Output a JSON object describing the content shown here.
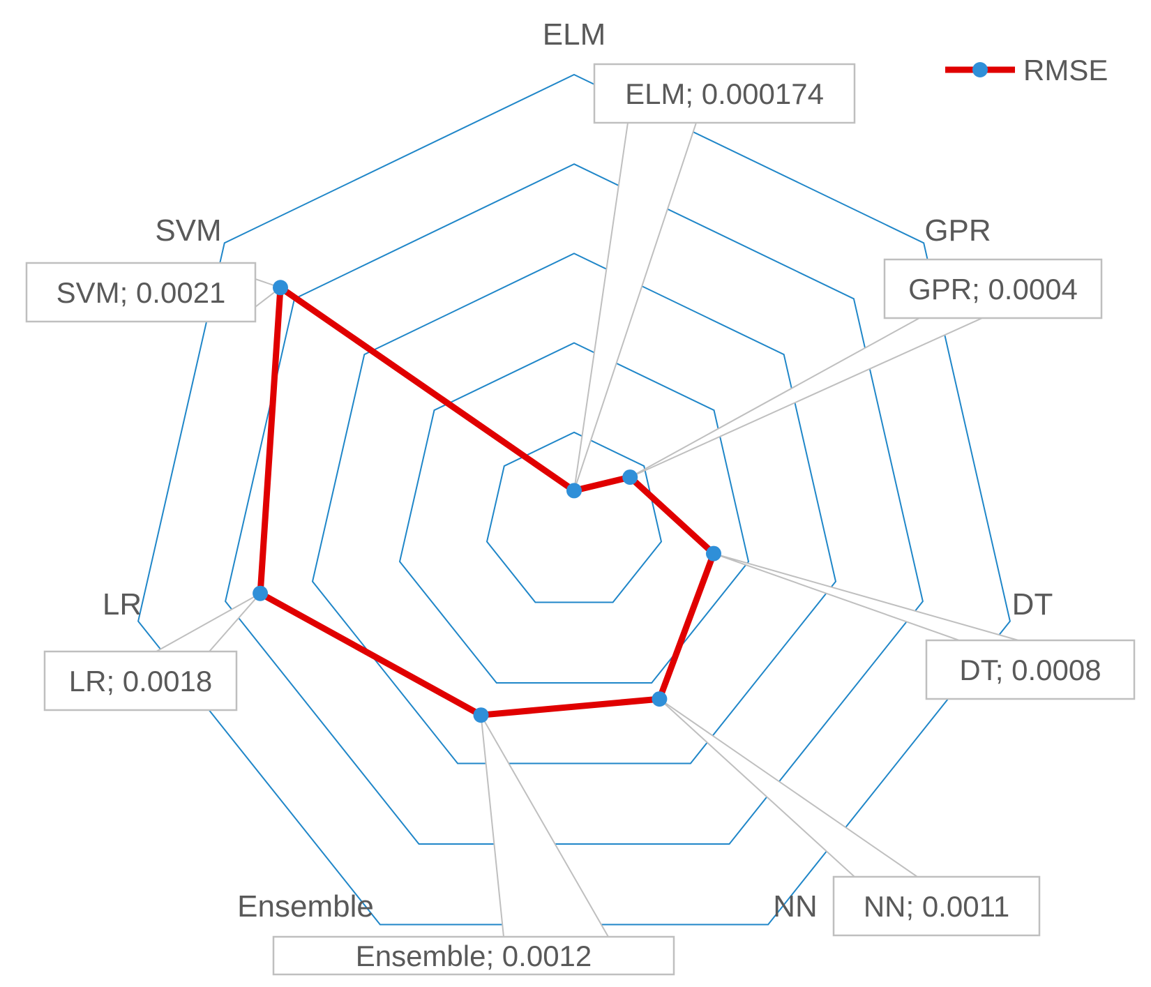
{
  "chart_data": {
    "type": "radar",
    "categories": [
      "ELM",
      "GPR",
      "DT",
      "NN",
      "Ensemble",
      "LR",
      "SVM"
    ],
    "series": [
      {
        "name": "RMSE",
        "values": [
          0.000174,
          0.0004,
          0.0008,
          0.0011,
          0.0012,
          0.0018,
          0.0021
        ],
        "color": "#e00000",
        "marker_color": "#2f8fd8"
      }
    ],
    "data_labels": [
      "ELM; 0.000174",
      "GPR; 0.0004",
      "DT; 0.0008",
      "NN; 0.0011",
      "Ensemble; 0.0012",
      "LR; 0.0018",
      "SVM; 0.0021"
    ],
    "rlim": [
      0,
      0.0025
    ],
    "gridline_step": 0.0005,
    "grid": true,
    "grid_color": "#1f86c8",
    "legend": {
      "position": "top-right",
      "entries": [
        "RMSE"
      ]
    }
  }
}
